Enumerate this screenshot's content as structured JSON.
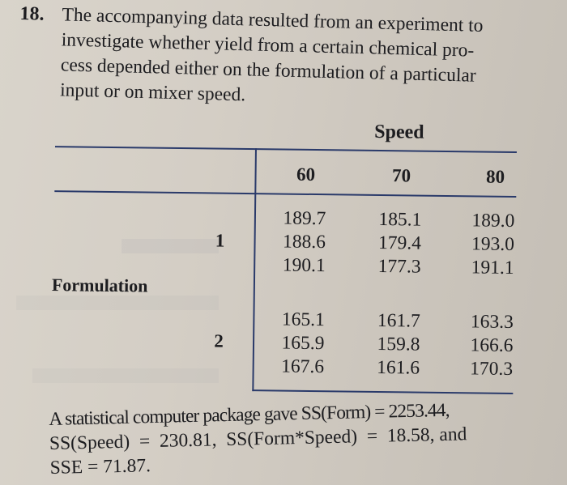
{
  "problem": {
    "number": "18.",
    "lines": [
      "The accompanying data resulted from an experiment to",
      "investigate whether yield from a certain chemical pro-",
      "cess depended either on the formulation of a particular",
      "input or on mixer speed."
    ]
  },
  "table": {
    "column_factor": "Speed",
    "row_factor": "Formulation",
    "columns": [
      "60",
      "70",
      "80"
    ],
    "rows": [
      {
        "label": "1",
        "cells": [
          [
            "189.7",
            "188.6",
            "190.1"
          ],
          [
            "185.1",
            "179.4",
            "177.3"
          ],
          [
            "189.0",
            "193.0",
            "191.1"
          ]
        ]
      },
      {
        "label": "2",
        "cells": [
          [
            "165.1",
            "165.9",
            "167.6"
          ],
          [
            "161.7",
            "159.8",
            "161.6"
          ],
          [
            "163.3",
            "166.6",
            "170.3"
          ]
        ]
      }
    ]
  },
  "summary": {
    "lines": [
      "A statistical computer package gave SS(Form) = 2253.44,",
      "SS(Speed)  =  230.81,  SS(Form*Speed)  =  18.58, and",
      "SSE = 71.87."
    ]
  },
  "colors": {
    "rule_line": "#2a3a6a",
    "text": "#1d1d20",
    "paper": "#d4cec5"
  }
}
